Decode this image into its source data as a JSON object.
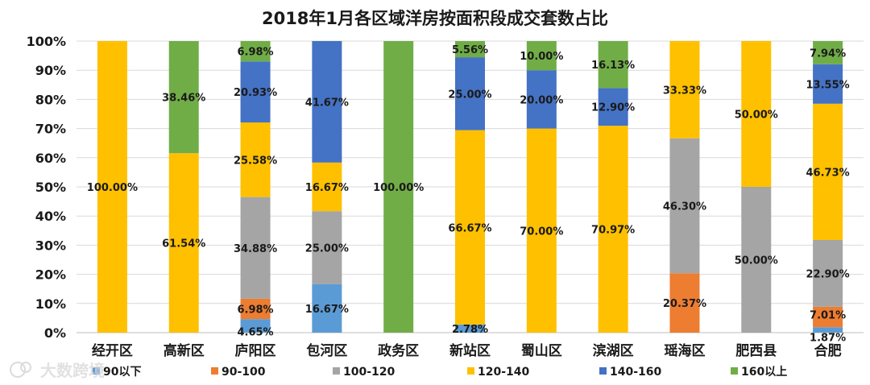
{
  "chart_data": {
    "type": "stacked-bar-percent",
    "title": "2018年1月各区域洋房按面积段成交套数占比",
    "categories": [
      "经开区",
      "高新区",
      "庐阳区",
      "包河区",
      "政务区",
      "新站区",
      "蜀山区",
      "滨湖区",
      "瑶海区",
      "肥西县",
      "合肥"
    ],
    "ylim": [
      0,
      100
    ],
    "yticks": [
      "0%",
      "10%",
      "20%",
      "30%",
      "40%",
      "50%",
      "60%",
      "70%",
      "80%",
      "90%",
      "100%"
    ],
    "legend_position": "bottom",
    "series": [
      {
        "name": "90以下",
        "color": "#5B9BD5",
        "values": [
          0,
          0,
          4.65,
          16.67,
          0,
          2.78,
          0,
          0,
          0,
          0,
          1.87
        ],
        "labels": [
          "",
          "",
          "4.65%",
          "16.67%",
          "",
          "2.78%",
          "",
          "",
          "",
          "",
          "1.87%"
        ]
      },
      {
        "name": "90-100",
        "color": "#ED7D31",
        "values": [
          0,
          0,
          6.98,
          0,
          0,
          0,
          0,
          0,
          20.37,
          0,
          7.01
        ],
        "labels": [
          "",
          "",
          "6.98%",
          "",
          "",
          "",
          "",
          "",
          "20.37%",
          "",
          "7.01%"
        ]
      },
      {
        "name": "100-120",
        "color": "#A5A5A5",
        "values": [
          0,
          0,
          34.88,
          25.0,
          0,
          0,
          0,
          0,
          46.3,
          50.0,
          22.9
        ],
        "labels": [
          "",
          "",
          "34.88%",
          "25.00%",
          "",
          "",
          "",
          "",
          "46.30%",
          "50.00%",
          "22.90%"
        ]
      },
      {
        "name": "120-140",
        "color": "#FFC000",
        "values": [
          100.0,
          61.54,
          25.58,
          16.67,
          0,
          66.67,
          70.0,
          70.97,
          33.33,
          50.0,
          46.73
        ],
        "labels": [
          "100.00%",
          "61.54%",
          "25.58%",
          "16.67%",
          "",
          "66.67%",
          "70.00%",
          "70.97%",
          "33.33%",
          "50.00%",
          "46.73%"
        ]
      },
      {
        "name": "140-160",
        "color": "#4472C4",
        "values": [
          0,
          0,
          20.93,
          41.67,
          0,
          25.0,
          20.0,
          12.9,
          0,
          0,
          13.55
        ],
        "labels": [
          "",
          "",
          "20.93%",
          "41.67%",
          "",
          "25.00%",
          "20.00%",
          "12.90%",
          "",
          "",
          "13.55%"
        ]
      },
      {
        "name": "160以上",
        "color": "#70AD47",
        "values": [
          0,
          38.46,
          6.98,
          0,
          100.0,
          5.56,
          10.0,
          16.13,
          0,
          0,
          7.94
        ],
        "labels": [
          "",
          "38.46%",
          "6.98%",
          "",
          "100.00%",
          "5.56%",
          "10.00%",
          "16.13%",
          "",
          "",
          "7.94%"
        ]
      }
    ]
  },
  "watermark": "大数跨境"
}
